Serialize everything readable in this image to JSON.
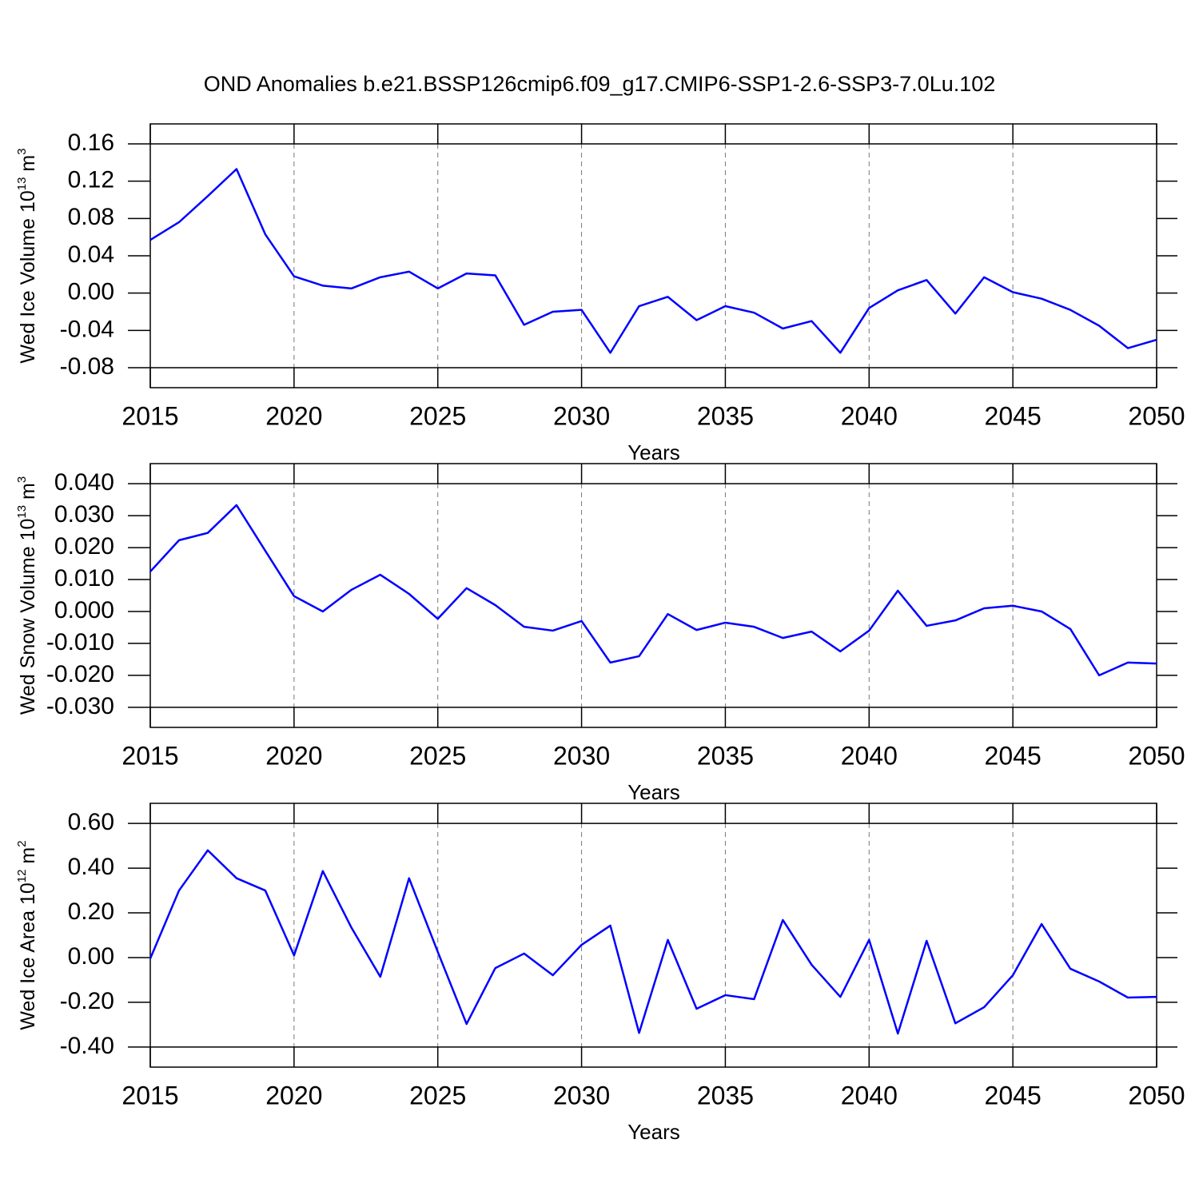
{
  "chart_data": [
    {
      "type": "line",
      "title": "OND Anomalies b.e21.BSSP126cmip6.f09_g17.CMIP6-SSP1-2.6-SSP3-7.0Lu.102",
      "xlabel": "Years",
      "ylabel": {
        "text": "Wed Ice Volume 10",
        "exponent": "13",
        "unit": " m",
        "unit_exponent": "3"
      },
      "x": [
        2015,
        2016,
        2017,
        2018,
        2019,
        2020,
        2021,
        2022,
        2023,
        2024,
        2025,
        2026,
        2027,
        2028,
        2029,
        2030,
        2031,
        2032,
        2033,
        2034,
        2035,
        2036,
        2037,
        2038,
        2039,
        2040,
        2041,
        2042,
        2043,
        2044,
        2045,
        2046,
        2047,
        2048,
        2049,
        2050
      ],
      "series": [
        {
          "color": "#0000ff",
          "values": [
            0.057,
            0.076,
            0.104,
            0.133,
            0.063,
            0.018,
            0.008,
            0.005,
            0.017,
            0.023,
            0.005,
            0.021,
            0.019,
            -0.034,
            -0.02,
            -0.018,
            -0.064,
            -0.014,
            -0.004,
            -0.029,
            -0.014,
            -0.021,
            -0.038,
            -0.03,
            -0.064,
            -0.016,
            0.003,
            0.014,
            -0.022,
            0.017,
            0.001,
            -0.006,
            -0.018,
            -0.035,
            -0.059,
            -0.05
          ]
        }
      ],
      "xlim": [
        2015,
        2050
      ],
      "xticks": [
        2015,
        2020,
        2025,
        2030,
        2035,
        2040,
        2045,
        2050
      ],
      "ylim": [
        -0.1014,
        0.1814
      ],
      "yticks": [
        0.16,
        0.12,
        0.08,
        0.04,
        {
          "value": 0,
          "label": "0.00"
        },
        -0.04,
        -0.08
      ]
    },
    {
      "type": "line",
      "xlabel": "Years",
      "ylabel": {
        "text": "Wed Snow Volume 10",
        "exponent": "13",
        "unit": " m",
        "unit_exponent": "3"
      },
      "x": [
        2015,
        2016,
        2017,
        2018,
        2019,
        2020,
        2021,
        2022,
        2023,
        2024,
        2025,
        2026,
        2027,
        2028,
        2029,
        2030,
        2031,
        2032,
        2033,
        2034,
        2035,
        2036,
        2037,
        2038,
        2039,
        2040,
        2041,
        2042,
        2043,
        2044,
        2045,
        2046,
        2047,
        2048,
        2049,
        2050
      ],
      "series": [
        {
          "color": "#0000ff",
          "values": [
            0.0125,
            0.0223,
            0.0246,
            0.0333,
            0.019,
            0.0048,
            0.0,
            0.0068,
            0.0115,
            0.0055,
            -0.0023,
            0.0073,
            0.002,
            -0.0048,
            -0.006,
            -0.003,
            -0.016,
            -0.014,
            -0.0008,
            -0.0058,
            -0.0035,
            -0.0048,
            -0.0083,
            -0.0063,
            -0.0125,
            -0.006,
            0.0065,
            -0.0045,
            -0.0028,
            0.001,
            0.0018,
            0.0,
            -0.0055,
            -0.02,
            -0.016,
            -0.0163
          ]
        }
      ],
      "xlim": [
        2015,
        2050
      ],
      "xticks": [
        2015,
        2020,
        2025,
        2030,
        2035,
        2040,
        2045,
        2050
      ],
      "ylim": [
        -0.0363,
        0.0463
      ],
      "yticks": [
        {
          "value": 0.04,
          "label": "0.040"
        },
        {
          "value": 0.03,
          "label": "0.030"
        },
        {
          "value": 0.02,
          "label": "0.020"
        },
        {
          "value": 0.01,
          "label": "0.010"
        },
        {
          "value": 0,
          "label": "0.000"
        },
        {
          "value": -0.01,
          "label": "-0.010"
        },
        {
          "value": -0.02,
          "label": "-0.020"
        },
        {
          "value": -0.03,
          "label": "-0.030"
        }
      ]
    },
    {
      "type": "line",
      "xlabel": "Years",
      "ylabel": {
        "text": "Wed Ice Area 10",
        "exponent": "12",
        "unit": " m",
        "unit_exponent": "2"
      },
      "x": [
        2015,
        2016,
        2017,
        2018,
        2019,
        2020,
        2021,
        2022,
        2023,
        2024,
        2025,
        2026,
        2027,
        2028,
        2029,
        2030,
        2031,
        2032,
        2033,
        2034,
        2035,
        2036,
        2037,
        2038,
        2039,
        2040,
        2041,
        2042,
        2043,
        2044,
        2045,
        2046,
        2047,
        2048,
        2049,
        2050
      ],
      "series": [
        {
          "color": "#0000ff",
          "values": [
            -0.004,
            0.3,
            0.48,
            0.355,
            0.3,
            0.01,
            0.387,
            0.133,
            -0.086,
            0.355,
            0.025,
            -0.297,
            -0.047,
            0.018,
            -0.079,
            0.057,
            0.143,
            -0.337,
            0.079,
            -0.229,
            -0.168,
            -0.186,
            0.168,
            -0.032,
            -0.176,
            0.079,
            -0.34,
            0.075,
            -0.294,
            -0.222,
            -0.079,
            0.15,
            -0.05,
            -0.107,
            -0.179,
            -0.176
          ]
        }
      ],
      "xlim": [
        2015,
        2050
      ],
      "xticks": [
        2015,
        2020,
        2025,
        2030,
        2035,
        2040,
        2045,
        2050
      ],
      "ylim": [
        -0.49,
        0.69
      ],
      "yticks": [
        {
          "value": 0.6,
          "label": "0.60"
        },
        {
          "value": 0.4,
          "label": "0.40"
        },
        {
          "value": 0.2,
          "label": "0.20"
        },
        {
          "value": 0,
          "label": "0.00"
        },
        {
          "value": -0.2,
          "label": "-0.20"
        },
        {
          "value": -0.4,
          "label": "-0.40"
        }
      ]
    }
  ]
}
